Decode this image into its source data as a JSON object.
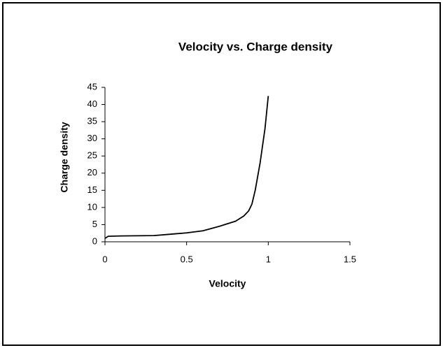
{
  "chart_data": {
    "type": "line",
    "title": "Velocity vs. Charge density",
    "x_label": "Velocity",
    "y_label": "Charge density",
    "x": [
      0,
      0.02,
      0.1,
      0.3,
      0.4,
      0.5,
      0.6,
      0.7,
      0.8,
      0.85,
      0.88,
      0.9,
      0.92,
      0.95,
      0.98,
      1.0
    ],
    "series": [
      {
        "name": "Charge density",
        "color": "#000000",
        "values": [
          1,
          1.6,
          1.7,
          1.8,
          2.2,
          2.6,
          3.2,
          4.5,
          6,
          7.5,
          9,
          11,
          15,
          23,
          33,
          42.5
        ]
      }
    ],
    "xlim": [
      0,
      1.5
    ],
    "xticks": [
      0,
      0.5,
      1,
      1.5
    ],
    "ylim": [
      0,
      45
    ],
    "yticks": [
      0,
      5,
      10,
      15,
      20,
      25,
      30,
      35,
      40,
      45
    ],
    "grid": false,
    "legend": false
  }
}
